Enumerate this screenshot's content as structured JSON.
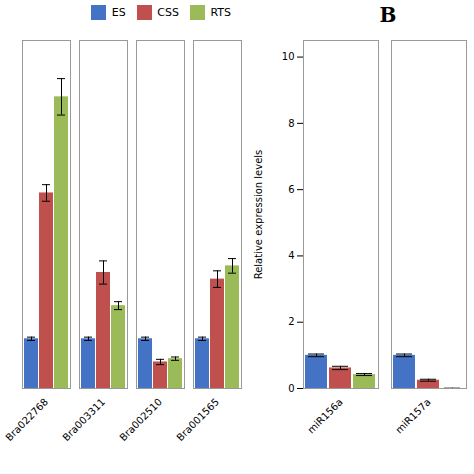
{
  "chart_data": [
    {
      "type": "bar",
      "categories": [
        "Bra022768",
        "Bra003311",
        "Bra002510",
        "Bra001565"
      ],
      "series": [
        {
          "name": "ES",
          "color": "#4472C4",
          "values": [
            1.5,
            1.5,
            1.5,
            1.5
          ],
          "errors": [
            0.05,
            0.05,
            0.05,
            0.05
          ]
        },
        {
          "name": "CSS",
          "color": "#C0504D",
          "values": [
            5.9,
            3.5,
            0.8,
            3.3
          ],
          "errors": [
            0.25,
            0.35,
            0.08,
            0.25
          ]
        },
        {
          "name": "RTS",
          "color": "#9BBB59",
          "values": [
            8.8,
            2.5,
            0.9,
            3.7
          ],
          "errors": [
            0.55,
            0.12,
            0.05,
            0.22
          ]
        }
      ],
      "ylim": [
        0,
        10.5
      ],
      "tick_labels": "x",
      "legend": "upper right"
    },
    {
      "type": "bar",
      "title": "B",
      "categories": [
        "miR156a",
        "miR157a"
      ],
      "series": [
        {
          "name": "ES",
          "color": "#4472C4",
          "values": [
            1.0,
            1.0
          ],
          "errors": [
            0.04,
            0.04
          ]
        },
        {
          "name": "CSS",
          "color": "#C0504D",
          "values": [
            0.62,
            0.25
          ],
          "errors": [
            0.05,
            0.03
          ]
        },
        {
          "name": "RTS",
          "color": "#9BBB59",
          "values": [
            0.42,
            0.0
          ],
          "errors": [
            0.03,
            0.01
          ]
        }
      ],
      "ylabel": "Relative expression levels",
      "ylim": [
        0,
        10.5
      ],
      "yticks": [
        0,
        2,
        4,
        6,
        8,
        10
      ]
    }
  ]
}
